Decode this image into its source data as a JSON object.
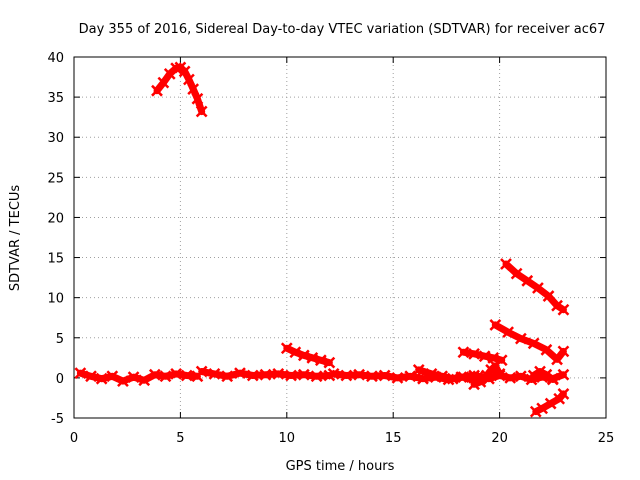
{
  "chart_data": {
    "type": "scatter",
    "title": "Day 355 of 2016, Sidereal Day-to-day VTEC variation (SDTVAR) for receiver ac67",
    "xlabel": "GPS time / hours",
    "ylabel": "SDTVAR / TECUs",
    "xlim": [
      0,
      25
    ],
    "ylim": [
      -5,
      40
    ],
    "xticks": [
      0,
      5,
      10,
      15,
      20,
      25
    ],
    "yticks": [
      -5,
      0,
      5,
      10,
      15,
      20,
      25,
      30,
      35,
      40
    ],
    "grid": true,
    "legend": "none",
    "series_color": "#ff0000",
    "series": [
      {
        "name": "arc-morning-peak",
        "x": [
          3.9,
          4.2,
          4.5,
          4.8,
          5.0,
          5.2,
          5.4,
          5.6,
          5.8,
          6.0
        ],
        "y": [
          35.8,
          36.8,
          37.9,
          38.6,
          38.7,
          38.2,
          37.2,
          36.0,
          34.8,
          33.2
        ]
      },
      {
        "name": "baseline-a",
        "x": [
          0.3,
          0.8,
          1.3,
          1.8,
          2.3,
          2.8,
          3.3,
          3.8,
          4.3,
          4.8,
          5.3,
          5.8
        ],
        "y": [
          0.6,
          0.2,
          -0.1,
          0.2,
          -0.4,
          0.1,
          -0.3,
          0.4,
          0.2,
          0.5,
          0.3,
          0.2
        ]
      },
      {
        "name": "baseline-b",
        "x": [
          6.0,
          6.6,
          7.2,
          7.8,
          8.4,
          9.0,
          9.6,
          10.2,
          10.8,
          11.4,
          12.0
        ],
        "y": [
          0.8,
          0.5,
          0.2,
          0.6,
          0.3,
          0.4,
          0.5,
          0.3,
          0.4,
          0.2,
          0.3
        ]
      },
      {
        "name": "baseline-c",
        "x": [
          12.2,
          12.8,
          13.4,
          14.0,
          14.6,
          15.2,
          15.8,
          16.4,
          17.0,
          17.6,
          18.2,
          18.8
        ],
        "y": [
          0.5,
          0.3,
          0.4,
          0.2,
          0.3,
          0.0,
          0.2,
          -0.1,
          0.1,
          -0.2,
          0.1,
          0.0
        ]
      },
      {
        "name": "baseline-d",
        "x": [
          19.0,
          19.5,
          20.0,
          20.5,
          21.0,
          21.5,
          22.0,
          22.5,
          23.0
        ],
        "y": [
          0.2,
          -0.1,
          0.3,
          0.0,
          0.2,
          -0.2,
          0.1,
          -0.1,
          0.4
        ]
      },
      {
        "name": "arc-10h",
        "x": [
          10.0,
          10.4,
          10.8,
          11.2,
          11.6,
          12.0
        ],
        "y": [
          3.7,
          3.2,
          2.8,
          2.5,
          2.2,
          1.9
        ]
      },
      {
        "name": "arc-16h",
        "x": [
          16.2,
          16.8,
          17.3,
          17.8,
          18.3,
          18.8
        ],
        "y": [
          1.0,
          0.5,
          0.2,
          -0.1,
          0.1,
          0.3
        ]
      },
      {
        "name": "arc-18h",
        "x": [
          18.3,
          18.8,
          19.3,
          19.7,
          20.1
        ],
        "y": [
          3.2,
          3.0,
          2.7,
          2.5,
          2.2
        ]
      },
      {
        "name": "arc-19h-dip",
        "x": [
          18.8,
          19.1,
          19.4,
          19.6,
          19.8,
          20.0
        ],
        "y": [
          -0.8,
          -0.5,
          0.3,
          1.0,
          1.5,
          0.5
        ]
      },
      {
        "name": "arc-20h-a",
        "x": [
          19.8,
          20.4,
          21.0,
          21.6,
          22.2,
          22.7,
          23.0
        ],
        "y": [
          6.6,
          5.7,
          4.9,
          4.3,
          3.5,
          2.3,
          3.3
        ]
      },
      {
        "name": "arc-20h-b",
        "x": [
          20.3,
          20.8,
          21.3,
          21.8,
          22.3,
          22.7,
          23.0
        ],
        "y": [
          14.2,
          13.0,
          12.1,
          11.2,
          10.2,
          9.0,
          8.5
        ]
      },
      {
        "name": "arc-21h-low",
        "x": [
          21.7,
          22.0,
          22.4,
          22.8,
          23.0
        ],
        "y": [
          -4.2,
          -3.8,
          -3.2,
          -2.6,
          -2.0
        ]
      },
      {
        "name": "arc-22h-blip",
        "x": [
          21.6,
          21.9,
          22.2,
          22.5
        ],
        "y": [
          0.3,
          0.8,
          0.4,
          -0.2
        ]
      }
    ]
  }
}
